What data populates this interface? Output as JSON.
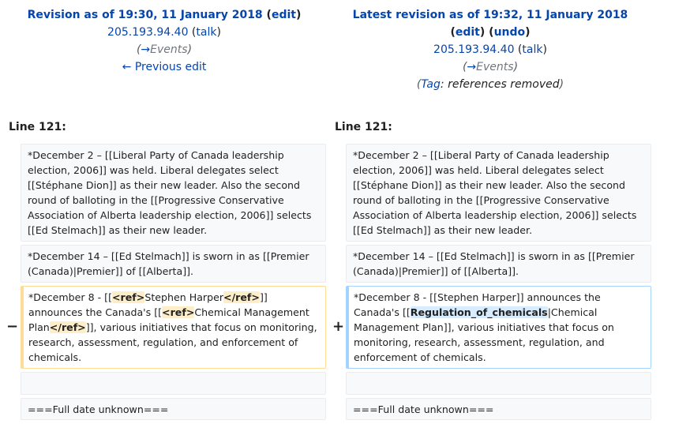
{
  "left_header": {
    "title_prefix": "Revision as of 19:30, 11 January 2018",
    "edit": "edit",
    "ip": "205.193.94.40",
    "talk": "talk",
    "summary_arrow": "→",
    "summary": "Events",
    "prev_edit": "← Previous edit"
  },
  "right_header": {
    "title_prefix": "Latest revision as of 19:32, 11 January 2018",
    "edit": "edit",
    "undo": "undo",
    "ip": "205.193.94.40",
    "talk": "talk",
    "summary_arrow": "→",
    "summary": "Events",
    "tag_label": "Tag",
    "tag_value": ": references removed"
  },
  "line_number": "Line 121:",
  "context": {
    "para1": "*December 2 – [[Liberal Party of Canada leadership election, 2006]] was held.  Liberal delegates select [[Stéphane Dion]] as their new leader.  Also the second round of balloting in the [[Progressive Conservative Association of Alberta leadership election, 2006]] selects [[Ed Stelmach]] as their new leader.",
    "para2": "*December 14 – [[Ed Stelmach]] is sworn in as [[Premier (Canada)|Premier]] of [[Alberta]].",
    "para4": "===Full date unknown==="
  },
  "removed": {
    "marker": "−",
    "t1": "*December 8 - [[",
    "h1": "<ref>",
    "t2": "Stephen Harper",
    "h2": "</ref>",
    "t3": "]] announces the Canada's [[",
    "h3": "<ref>",
    "t4": "Chemical Management Plan",
    "h4": "</ref>",
    "t5": "]], various initiatives that focus on monitoring, research, assessment, regulation, and enforcement of chemicals."
  },
  "added": {
    "marker": "+",
    "t1": "*December 8 - [[Stephen Harper]] announces the Canada's [[",
    "h1": "Regulation_of_chemicals",
    "t2": "|Chemical Management Plan]], various initiatives that focus on monitoring, research, assessment, regulation, and enforcement of chemicals."
  }
}
